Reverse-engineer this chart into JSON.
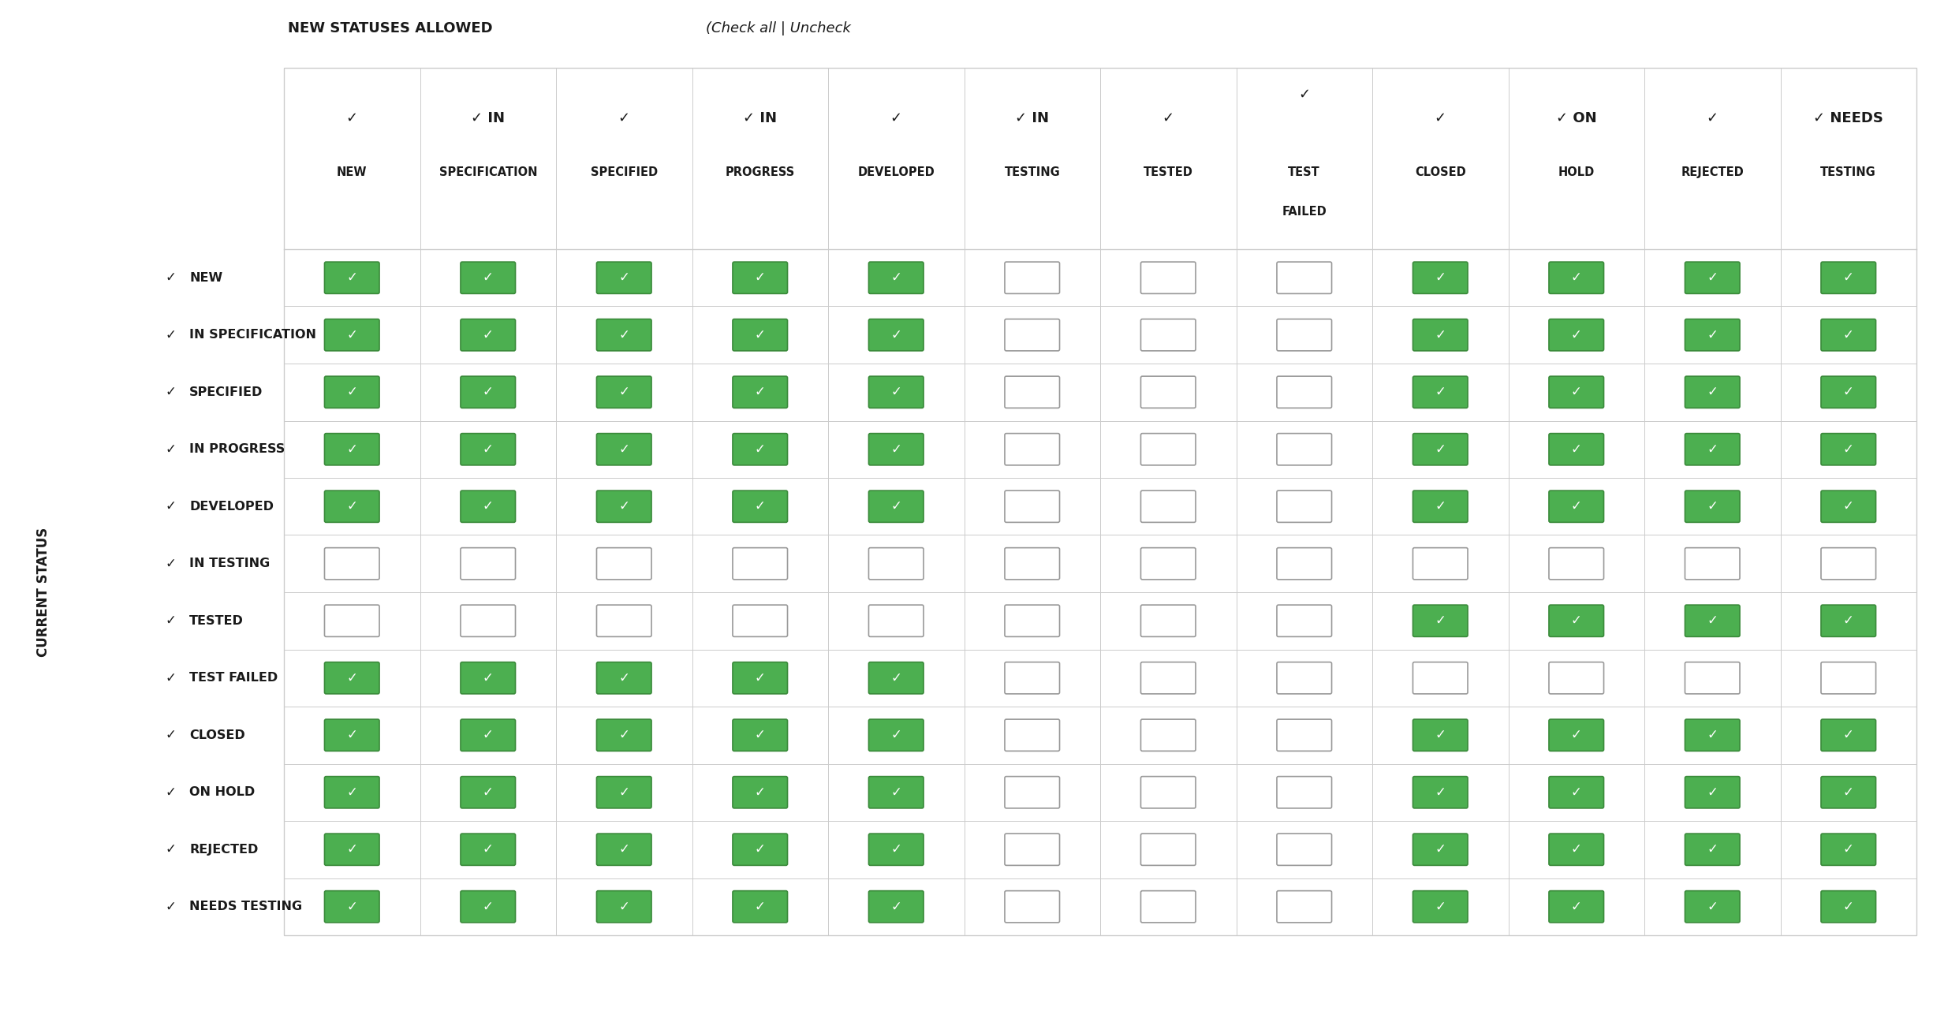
{
  "title_bold": "NEW STATUSES ALLOWED",
  "title_italic": "(Check all | Uncheck",
  "col_headers": [
    {
      "check": "✓",
      "name1": "NEW",
      "name2": ""
    },
    {
      "check": "✓ IN",
      "name1": "SPECIFICATION",
      "name2": ""
    },
    {
      "check": "✓",
      "name1": "SPECIFIED",
      "name2": ""
    },
    {
      "check": "✓ IN",
      "name1": "PROGRESS",
      "name2": ""
    },
    {
      "check": "✓",
      "name1": "DEVELOPED",
      "name2": ""
    },
    {
      "check": "✓ IN",
      "name1": "TESTING",
      "name2": ""
    },
    {
      "check": "✓",
      "name1": "TESTED",
      "name2": ""
    },
    {
      "check": "✓",
      "name1": "TEST",
      "name2": "FAILED"
    },
    {
      "check": "✓",
      "name1": "CLOSED",
      "name2": ""
    },
    {
      "check": "✓ ON",
      "name1": "HOLD",
      "name2": ""
    },
    {
      "check": "✓",
      "name1": "REJECTED",
      "name2": ""
    },
    {
      "check": "✓ NEEDS",
      "name1": "TESTING",
      "name2": ""
    }
  ],
  "row_headers": [
    "NEW",
    "IN SPECIFICATION",
    "SPECIFIED",
    "IN PROGRESS",
    "DEVELOPED",
    "IN TESTING",
    "TESTED",
    "TEST FAILED",
    "CLOSED",
    "ON HOLD",
    "REJECTED",
    "NEEDS TESTING"
  ],
  "checkboxes": [
    [
      1,
      1,
      1,
      1,
      1,
      0,
      0,
      0,
      1,
      1,
      1,
      1
    ],
    [
      1,
      1,
      1,
      1,
      1,
      0,
      0,
      0,
      1,
      1,
      1,
      1
    ],
    [
      1,
      1,
      1,
      1,
      1,
      0,
      0,
      0,
      1,
      1,
      1,
      1
    ],
    [
      1,
      1,
      1,
      1,
      1,
      0,
      0,
      0,
      1,
      1,
      1,
      1
    ],
    [
      1,
      1,
      1,
      1,
      1,
      0,
      0,
      0,
      1,
      1,
      1,
      1
    ],
    [
      0,
      0,
      0,
      0,
      0,
      0,
      0,
      0,
      0,
      0,
      0,
      0
    ],
    [
      0,
      0,
      0,
      0,
      0,
      0,
      0,
      0,
      1,
      1,
      1,
      1
    ],
    [
      1,
      1,
      1,
      1,
      1,
      0,
      0,
      0,
      0,
      0,
      0,
      0
    ],
    [
      1,
      1,
      1,
      1,
      1,
      0,
      0,
      0,
      1,
      1,
      1,
      1
    ],
    [
      1,
      1,
      1,
      1,
      1,
      0,
      0,
      0,
      1,
      1,
      1,
      1
    ],
    [
      1,
      1,
      1,
      1,
      1,
      0,
      0,
      0,
      1,
      1,
      1,
      1
    ],
    [
      1,
      1,
      1,
      1,
      1,
      0,
      0,
      0,
      1,
      1,
      1,
      1
    ]
  ],
  "checked_color": "#4caf50",
  "unchecked_color": "#ffffff",
  "check_mark_color": "#ffffff",
  "text_color": "#1a1a1a",
  "grid_color": "#cccccc",
  "background_color": "#ffffff",
  "fig_width": 24.7,
  "fig_height": 12.96,
  "dpi": 100
}
